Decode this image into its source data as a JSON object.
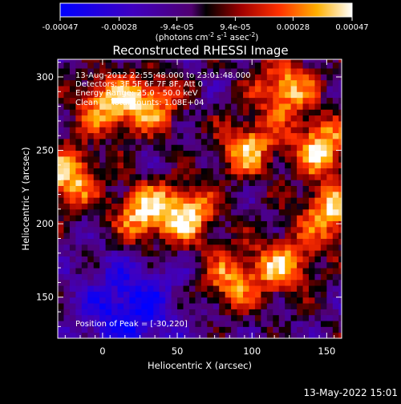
{
  "chart_data": {
    "type": "heatmap",
    "title": "Reconstructed RHESSI Image",
    "xlabel": "Heliocentric X (arcsec)",
    "ylabel": "Heliocentric Y (arcsec)",
    "xlim": [
      -30,
      160
    ],
    "ylim": [
      122,
      312
    ],
    "xticks": [
      "0",
      "50",
      "100",
      "150"
    ],
    "yticks": [
      "150",
      "200",
      "250",
      "300"
    ],
    "info_lines": [
      "13-Aug-2012 22:55:48.000 to 23:01:48.000",
      "Detectors: 3F 5F 6F 7F 8F, Att 0",
      "Energy Range: 25.0 - 50.0 keV",
      "Clean     Total counts: 1.08E+04"
    ],
    "peak_text": "Position of Peak = [-30,220]",
    "peak": [
      -30,
      220
    ],
    "colorbar": {
      "range": [
        -0.00047,
        0.00047
      ],
      "ticks": [
        "-0.00047",
        "-0.00028",
        "-9.4e-05",
        "9.4e-05",
        "0.00028",
        "0.00047"
      ],
      "unit": "(photons cm",
      "unit_exp1": "-2",
      "unit_mid": " s",
      "unit_exp2": "-1",
      "unit_end": " asec",
      "unit_exp3": "-2",
      "unit_close": ")"
    },
    "grid": false,
    "bright_sources": [
      {
        "x": -25,
        "y": 230,
        "level": 0.95
      },
      {
        "x": 25,
        "y": 205,
        "level": 0.9
      },
      {
        "x": 55,
        "y": 205,
        "level": 0.9
      },
      {
        "x": 95,
        "y": 250,
        "level": 0.85
      },
      {
        "x": 145,
        "y": 250,
        "level": 0.95
      },
      {
        "x": 150,
        "y": 205,
        "level": 0.9
      },
      {
        "x": 120,
        "y": 290,
        "level": 0.9
      },
      {
        "x": 30,
        "y": 280,
        "level": 0.8
      },
      {
        "x": 0,
        "y": 280,
        "level": 0.85
      },
      {
        "x": 85,
        "y": 160,
        "level": 0.75
      },
      {
        "x": 120,
        "y": 170,
        "level": 0.8
      }
    ],
    "dark_region": {
      "x": 15,
      "y": 140,
      "level": -0.8
    }
  },
  "footer": {
    "date": "13-May-2022 15:01"
  }
}
